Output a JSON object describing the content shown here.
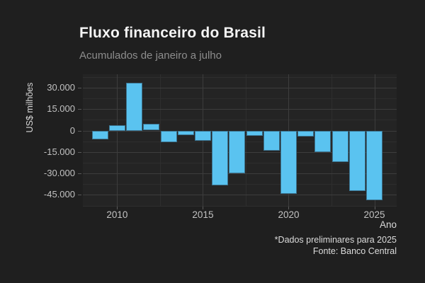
{
  "header": {
    "title": "Fluxo financeiro do Brasil",
    "subtitle": "Acumulados de janeiro a julho"
  },
  "chart_data": {
    "type": "bar",
    "title": "Fluxo financeiro do Brasil",
    "subtitle": "Acumulados de janeiro a julho",
    "xlabel": "Ano",
    "ylabel": "US$ milhões",
    "x": [
      2009,
      2010,
      2011,
      2012,
      2013,
      2014,
      2015,
      2016,
      2017,
      2018,
      2019,
      2020,
      2021,
      2022,
      2023,
      2024,
      2025
    ],
    "values": [
      -6300,
      3700,
      33300,
      4700,
      -8300,
      -3200,
      -7000,
      -38200,
      -29800,
      -3500,
      -14000,
      -44300,
      -4000,
      -15100,
      -22000,
      -42300,
      -48600
    ],
    "xlim": [
      2008.0,
      2026.3
    ],
    "ylim": [
      -53200,
      39350
    ],
    "bar_rel_width": 0.95,
    "grid": "on",
    "legend": "none",
    "y_ticks": [
      {
        "v": 30000,
        "label": "30.000"
      },
      {
        "v": 15000,
        "label": "15.000"
      },
      {
        "v": 0,
        "label": "0"
      },
      {
        "v": -15000,
        "label": "-15.000"
      },
      {
        "v": -30000,
        "label": "-30.000"
      },
      {
        "v": -45000,
        "label": "-45.000"
      }
    ],
    "y_minor": [
      37500,
      22500,
      7500,
      -7500,
      -22500,
      -37500,
      -52500
    ],
    "x_ticks": [
      {
        "v": 2010,
        "label": "2010"
      },
      {
        "v": 2015,
        "label": "2015"
      },
      {
        "v": 2020,
        "label": "2020"
      },
      {
        "v": 2025,
        "label": "2025"
      }
    ],
    "x_minor": [
      2012.5,
      2017.5,
      2022.5
    ]
  },
  "caption": {
    "line1": "*Dados preliminares para 2025",
    "line2": "Fonte: Banco Central"
  },
  "colors": {
    "background": "#1f1f1f",
    "panel": "#242424",
    "bar_fill": "#5ac3f0",
    "bar_border": "#3c738f",
    "grid_major": "#3d3d3d",
    "grid_minor": "#2e2e2e",
    "title": "#f5f5f5",
    "subtitle": "#8d8d8d",
    "tick_label": "#c2c2c2",
    "axis_title": "#d9d9d9",
    "caption": "#dcdcdc",
    "tick_mark": "#5a5a5a"
  }
}
